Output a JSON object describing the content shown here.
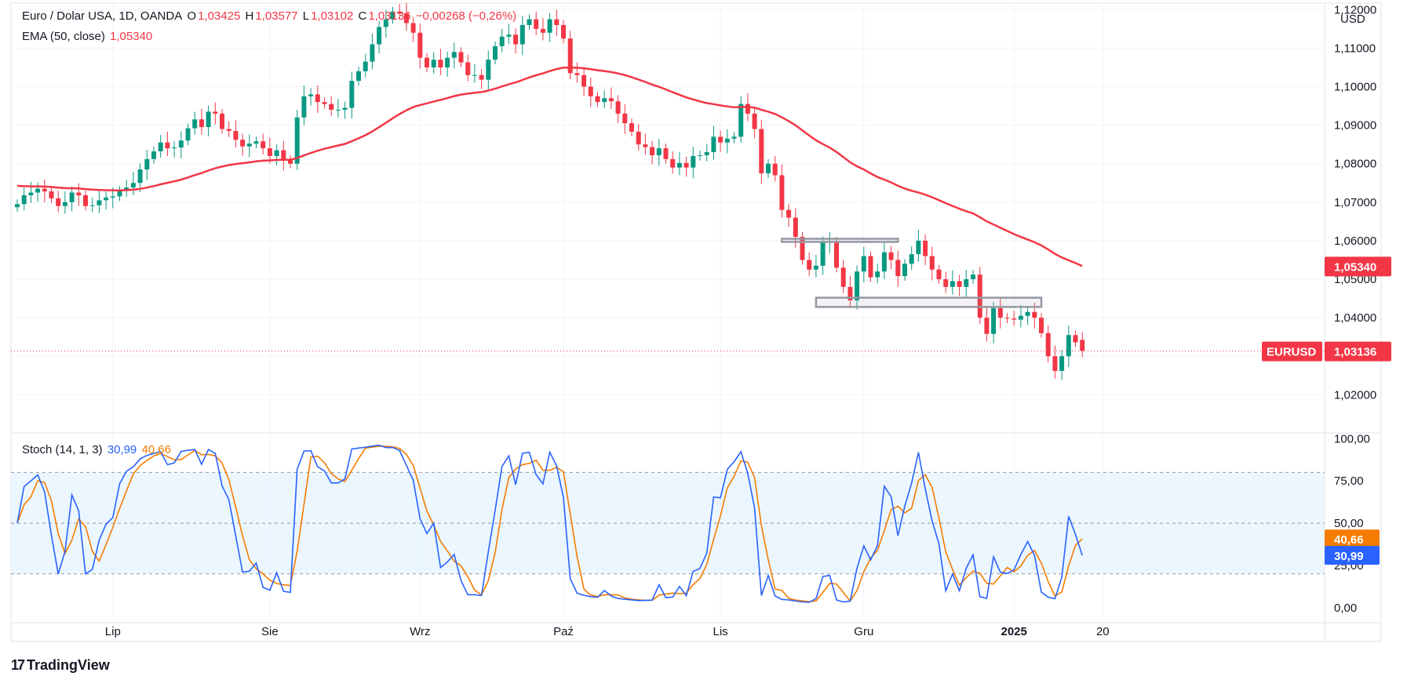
{
  "header": {
    "symbol_title": "Euro / Dolar USA, 1D, OANDA",
    "ohlc": {
      "o_label": "O",
      "o": "1,03425",
      "h_label": "H",
      "h": "1,03577",
      "l_label": "L",
      "l": "1,03102",
      "c_label": "C",
      "c": "1,03136",
      "change": "−0,00268 (−0,26%)"
    },
    "ema_label": "EMA (50, close)",
    "ema_value": "1,05340",
    "stoch_label": "Stoch (14, 1, 3)",
    "stoch_k_value": "30,99",
    "stoch_d_value": "40,66"
  },
  "currency_label": "USD",
  "price_tag": {
    "symbol": "EURUSD",
    "value": "1,03136"
  },
  "ema_tag": "1,05340",
  "stoch_tags": {
    "d": "40,66",
    "k": "30,99"
  },
  "branding": "TradingView",
  "colors": {
    "up": "#089981",
    "down": "#f23645",
    "ema": "#f23645",
    "stoch_k": "#2962ff",
    "stoch_d": "#f57c00",
    "band_fill": "#e3f2fd",
    "rect_stroke": "#9598a1",
    "grid": "#f0f3fa",
    "axis_text": "#131722"
  },
  "chart_data": [
    {
      "type": "candlestick",
      "title": "Euro / Dolar USA, 1D, OANDA",
      "y_axis": {
        "range": [
          1.0105,
          1.1225
        ],
        "ticks": [
          1.02,
          1.03,
          1.04,
          1.05,
          1.06,
          1.07,
          1.08,
          1.09,
          1.1,
          1.11,
          1.12
        ],
        "tick_labels": [
          "1,02000",
          "1,03000",
          "1,04000",
          "1,05000",
          "1,06000",
          "1,07000",
          "1,08000",
          "1,09000",
          "1,10000",
          "1,11000",
          "1,12000"
        ]
      },
      "x_axis": {
        "ticks": [
          {
            "label": "Lip",
            "index": 14
          },
          {
            "label": "Sie",
            "index": 37
          },
          {
            "label": "Wrz",
            "index": 59
          },
          {
            "label": "Paź",
            "index": 80
          },
          {
            "label": "Lis",
            "index": 103
          },
          {
            "label": "Gru",
            "index": 124
          },
          {
            "label": "2025",
            "index": 146
          },
          {
            "label": "20",
            "index": 159
          }
        ]
      },
      "closes": [
        1.0695,
        1.0718,
        1.0725,
        1.0735,
        1.0728,
        1.071,
        1.069,
        1.07,
        1.0725,
        1.0718,
        1.069,
        1.0692,
        1.0705,
        1.0712,
        1.0715,
        1.073,
        1.0738,
        1.075,
        1.0785,
        1.0812,
        1.0832,
        1.0855,
        1.084,
        1.0842,
        1.086,
        1.0892,
        1.0915,
        1.0895,
        1.0935,
        1.093,
        1.089,
        1.0885,
        1.0862,
        1.0845,
        1.0852,
        1.0858,
        1.084,
        1.082,
        1.0835,
        1.081,
        1.08,
        1.092,
        1.0975,
        1.098,
        1.096,
        1.0955,
        1.094,
        1.094,
        1.0945,
        1.1015,
        1.104,
        1.1065,
        1.111,
        1.1155,
        1.1175,
        1.1195,
        1.119,
        1.1165,
        1.114,
        1.1075,
        1.105,
        1.107,
        1.105,
        1.1075,
        1.109,
        1.1063,
        1.103,
        1.103,
        1.1018,
        1.107,
        1.1105,
        1.113,
        1.1135,
        1.111,
        1.116,
        1.1175,
        1.115,
        1.114,
        1.1175,
        1.116,
        1.1125,
        1.1035,
        1.103,
        1.1,
        1.0975,
        1.096,
        1.097,
        1.0962,
        1.093,
        1.0905,
        1.0883,
        1.085,
        1.0843,
        1.0822,
        1.084,
        1.0812,
        1.079,
        1.0802,
        1.079,
        1.082,
        1.0822,
        1.083,
        1.087,
        1.0855,
        1.0865,
        1.087,
        1.0955,
        1.093,
        1.089,
        1.0775,
        1.08,
        1.077,
        1.068,
        1.066,
        1.061,
        1.055,
        1.0525,
        1.0535,
        1.0595,
        1.0598,
        1.053,
        1.048,
        1.0445,
        1.052,
        1.056,
        1.0505,
        1.052,
        1.057,
        1.055,
        1.0508,
        1.054,
        1.0565,
        1.06,
        1.056,
        1.0525,
        1.05,
        1.048,
        1.0495,
        1.048,
        1.05,
        1.0512,
        1.04,
        1.0358,
        1.0425,
        1.04,
        1.0398,
        1.0395,
        1.0405,
        1.0415,
        1.04,
        1.036,
        1.03,
        1.0262,
        1.03,
        1.0355,
        1.0336,
        1.0314
      ],
      "series": [
        {
          "name": "EMA (50, close)",
          "last_value": 1.0534
        }
      ],
      "annotations": [
        {
          "type": "rectangle",
          "x_index_range": [
            112,
            129
          ],
          "y_range": [
            1.06,
            1.0605
          ]
        },
        {
          "type": "rectangle",
          "x_index_range": [
            117,
            150
          ],
          "y_range": [
            1.0428,
            1.0452
          ]
        },
        {
          "type": "horizontal_dotted_line",
          "y": 1.03136
        }
      ]
    },
    {
      "type": "line",
      "title": "Stoch (14, 1, 3)",
      "y_axis": {
        "range": [
          -7,
          102
        ],
        "ticks": [
          0,
          25,
          50,
          75,
          100
        ],
        "tick_labels": [
          "0,00",
          "25,00",
          "50,00",
          "75,00",
          "100,00"
        ],
        "band": [
          20,
          80
        ]
      },
      "series": [
        {
          "name": "%K",
          "last_value": 30.99
        },
        {
          "name": "%D",
          "last_value": 40.66
        }
      ]
    }
  ]
}
